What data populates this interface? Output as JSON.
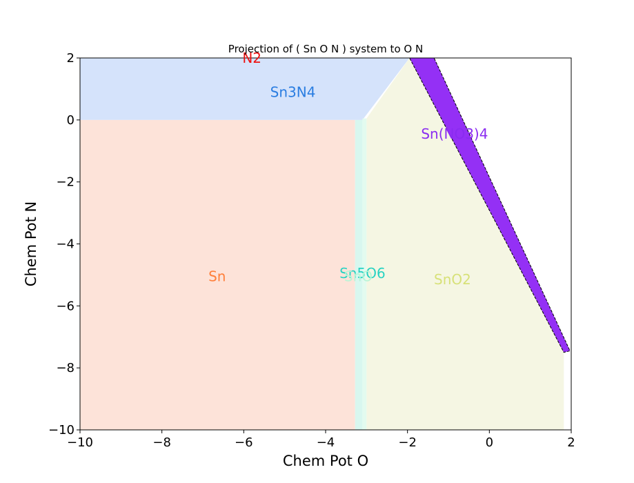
{
  "chart_data": {
    "type": "area",
    "title": "Projection of ( Sn O N ) system to O N",
    "xlabel": "Chem Pot O",
    "ylabel": "Chem Pot N",
    "xlim": [
      -10,
      2
    ],
    "ylim": [
      -10,
      2
    ],
    "xticks": [
      -10,
      -8,
      -6,
      -4,
      -2,
      0,
      2
    ],
    "yticks": [
      -10,
      -8,
      -6,
      -4,
      -2,
      0,
      2
    ],
    "xtick_labels": [
      "−10",
      "−8",
      "−6",
      "−4",
      "−2",
      "0",
      "2"
    ],
    "ytick_labels": [
      "−10",
      "−8",
      "−6",
      "−4",
      "−2",
      "0",
      "2"
    ],
    "grid": false,
    "regions": [
      {
        "name": "Sn3N4",
        "fill": "#d5e3fb",
        "stroke": "none",
        "polygon": [
          [
            -10,
            0
          ],
          [
            -10,
            2
          ],
          [
            -1.95,
            2
          ],
          [
            -3.1,
            0
          ]
        ],
        "label": "Sn3N4",
        "label_color": "#2a7de1",
        "label_at": [
          -4.8,
          0.9
        ]
      },
      {
        "name": "Sn",
        "fill": "#fde3d9",
        "stroke": "none",
        "polygon": [
          [
            -10,
            -10
          ],
          [
            -10,
            0
          ],
          [
            -3.28,
            0
          ],
          [
            -3.28,
            -10
          ]
        ],
        "label": "Sn",
        "label_color": "#ff7f3a",
        "label_at": [
          -6.65,
          -5.05
        ]
      },
      {
        "name": "Sn5O6",
        "fill": "#d8f7ef",
        "stroke": "none",
        "polygon": [
          [
            -3.28,
            -10
          ],
          [
            -3.28,
            0
          ],
          [
            -3.1,
            0
          ],
          [
            -3.1,
            -10
          ]
        ],
        "label": "Sn5O6",
        "label_color": "#27d3c2",
        "label_at": [
          -3.1,
          -4.95
        ]
      },
      {
        "name": "SnO",
        "fill": "#e3fbef",
        "stroke": "none",
        "polygon": [
          [
            -3.1,
            -10
          ],
          [
            -3.1,
            0.05
          ],
          [
            -3.0,
            0.05
          ],
          [
            -3.0,
            -10
          ]
        ],
        "label": "SnO",
        "label_color": "#b8f5d7",
        "label_at": [
          -3.2,
          -5.05
        ]
      },
      {
        "name": "SnO2",
        "fill": "#f5f6e3",
        "stroke": "none",
        "polygon": [
          [
            -3.0,
            -10
          ],
          [
            -3.0,
            0.05
          ],
          [
            -1.95,
            2
          ],
          [
            1.82,
            -7.5
          ],
          [
            1.82,
            -10
          ]
        ],
        "label": "SnO2",
        "label_color": "#d7e178",
        "label_at": [
          -0.9,
          -5.15
        ]
      },
      {
        "name": "Sn(NO3)4",
        "fill": "#9430f5",
        "stroke": "#000000",
        "polygon": [
          [
            -1.95,
            2
          ],
          [
            -1.35,
            2
          ],
          [
            1.97,
            -7.45
          ],
          [
            1.82,
            -7.5
          ]
        ],
        "label": "Sn(NO3)4",
        "label_color": "#8a2cf0",
        "label_at": [
          -0.85,
          -0.45
        ]
      }
    ],
    "annotations": [
      {
        "text": "N2",
        "color": "#ee1111",
        "at": [
          -5.8,
          2
        ]
      }
    ]
  }
}
